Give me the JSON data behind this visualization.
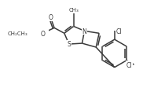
{
  "bg_color": "#ffffff",
  "lc": "#3a3a3a",
  "lw": 1.1,
  "fs": 5.5,
  "xlim": [
    -0.5,
    5.8
  ],
  "ylim": [
    -2.8,
    2.5
  ]
}
